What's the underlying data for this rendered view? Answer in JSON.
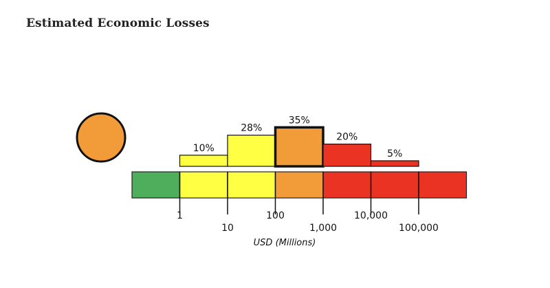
{
  "title": "Estimated Economic Losses",
  "chart_data": {
    "type": "bar",
    "title": "Estimated Economic Losses",
    "xlabel": "USD (Millions)",
    "ylabel": "",
    "scale": "log",
    "alert_level": "orange",
    "alert_color": "#f19c38",
    "categories": [
      "1-10",
      "10-100",
      "100-1,000",
      "1,000-10,000",
      "10,000-100,000"
    ],
    "values": [
      10,
      28,
      35,
      20,
      5
    ],
    "value_labels": [
      "10%",
      "28%",
      "35%",
      "20%",
      "5%"
    ],
    "bar_colors": [
      "#ffff44",
      "#ffff44",
      "#f19c38",
      "#ea3323",
      "#ea3323"
    ],
    "highlighted_index": 2,
    "ticks": [
      "1",
      "10",
      "100",
      "1,000",
      "10,000",
      "100,000"
    ],
    "scale_segments": [
      {
        "color": "#4eae5b"
      },
      {
        "color": "#ffff44"
      },
      {
        "color": "#ffff44"
      },
      {
        "color": "#f19c38"
      },
      {
        "color": "#ea3323"
      },
      {
        "color": "#ea3323"
      },
      {
        "color": "#ea3323"
      }
    ]
  }
}
